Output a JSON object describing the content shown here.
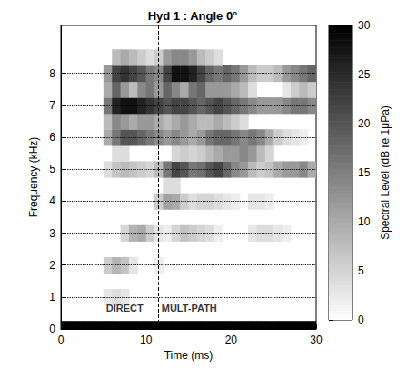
{
  "chart_data": {
    "type": "heatmap",
    "title": "Hyd 1 : Angle 0°",
    "x_label": "Time (ms)",
    "y_label": "Frequency (kHz)",
    "xlim": [
      0,
      30
    ],
    "xticks": [
      0,
      10,
      20,
      30
    ],
    "ylim": [
      0,
      9.5
    ],
    "yticks": [
      0,
      1,
      2,
      3,
      4,
      5,
      6,
      7,
      8
    ],
    "grid": true,
    "x": [
      0.5,
      1.5,
      2.5,
      3.5,
      4.5,
      5.5,
      6.5,
      7.5,
      8.5,
      9.5,
      10.5,
      11.5,
      12.5,
      13.5,
      14.5,
      15.5,
      16.5,
      17.5,
      18.5,
      19.5,
      20.5,
      21.5,
      22.5,
      23.5,
      24.5,
      25.5,
      26.5,
      27.5,
      28.5,
      29.5
    ],
    "y": [
      0,
      0.5,
      1,
      1.5,
      2,
      2.5,
      3,
      3.5,
      4,
      4.5,
      5,
      5.5,
      6,
      6.5,
      7,
      7.5,
      8,
      8.5,
      9,
      9.5
    ],
    "cells": [
      [
        30,
        30,
        30,
        30,
        30,
        30,
        30,
        30,
        30,
        30,
        30,
        30,
        30,
        30,
        30,
        30,
        30,
        30,
        30,
        30,
        30,
        30,
        30,
        30,
        30,
        30,
        30,
        30,
        30,
        30
      ],
      [
        0,
        0,
        0,
        0,
        0,
        0,
        0,
        0,
        0,
        0,
        0,
        0,
        0,
        0,
        0,
        0,
        0,
        0,
        0,
        0,
        0,
        0,
        0,
        0,
        0,
        0,
        0,
        0,
        0,
        0
      ],
      [
        0,
        0,
        0,
        0,
        0,
        3,
        4,
        3,
        0,
        0,
        0,
        0,
        0,
        0,
        0,
        0,
        0,
        0,
        0,
        0,
        0,
        0,
        0,
        0,
        0,
        0,
        0,
        0,
        0,
        0
      ],
      [
        0,
        0,
        0,
        0,
        0,
        0,
        0,
        0,
        0,
        0,
        0,
        0,
        0,
        0,
        0,
        0,
        0,
        0,
        0,
        0,
        0,
        0,
        0,
        0,
        0,
        0,
        0,
        0,
        0,
        0
      ],
      [
        0,
        0,
        0,
        0,
        0,
        6,
        9,
        7,
        3,
        0,
        0,
        2,
        0,
        0,
        0,
        0,
        0,
        0,
        0,
        0,
        0,
        0,
        0,
        0,
        0,
        0,
        0,
        0,
        0,
        0
      ],
      [
        0,
        0,
        0,
        0,
        0,
        0,
        0,
        0,
        0,
        0,
        0,
        0,
        0,
        0,
        0,
        0,
        0,
        0,
        0,
        0,
        0,
        0,
        0,
        0,
        0,
        0,
        0,
        0,
        0,
        0
      ],
      [
        0,
        0,
        0,
        0,
        0,
        0,
        0,
        5,
        9,
        10,
        6,
        3,
        2,
        5,
        7,
        6,
        5,
        4,
        2,
        0,
        0,
        0,
        3,
        4,
        4,
        3,
        2,
        0,
        0,
        0
      ],
      [
        0,
        0,
        0,
        0,
        0,
        0,
        0,
        0,
        0,
        0,
        0,
        0,
        0,
        0,
        0,
        0,
        0,
        0,
        0,
        0,
        0,
        0,
        0,
        0,
        0,
        0,
        0,
        0,
        0,
        0
      ],
      [
        0,
        0,
        0,
        0,
        0,
        0,
        0,
        0,
        0,
        0,
        0,
        6,
        11,
        10,
        6,
        4,
        5,
        5,
        4,
        3,
        2,
        0,
        3,
        3,
        2,
        0,
        0,
        0,
        0,
        0
      ],
      [
        0,
        0,
        0,
        0,
        0,
        0,
        0,
        0,
        0,
        0,
        0,
        0,
        4,
        4,
        0,
        0,
        0,
        0,
        0,
        0,
        0,
        0,
        0,
        0,
        0,
        0,
        0,
        0,
        0,
        0
      ],
      [
        0,
        0,
        0,
        0,
        0,
        4,
        7,
        8,
        7,
        6,
        5,
        8,
        16,
        22,
        20,
        16,
        17,
        20,
        22,
        18,
        14,
        12,
        8,
        6,
        7,
        10,
        12,
        12,
        14,
        10
      ],
      [
        0,
        0,
        0,
        0,
        0,
        0,
        4,
        4,
        0,
        0,
        0,
        0,
        0,
        5,
        6,
        5,
        6,
        8,
        10,
        12,
        12,
        14,
        12,
        8,
        5,
        0,
        0,
        0,
        0,
        0
      ],
      [
        0,
        0,
        0,
        0,
        0,
        10,
        16,
        20,
        20,
        18,
        16,
        14,
        12,
        14,
        12,
        10,
        12,
        16,
        18,
        18,
        16,
        14,
        16,
        14,
        10,
        6,
        4,
        3,
        2,
        0
      ],
      [
        0,
        0,
        0,
        0,
        0,
        8,
        14,
        12,
        10,
        12,
        12,
        10,
        8,
        10,
        12,
        10,
        8,
        8,
        10,
        8,
        6,
        4,
        0,
        0,
        0,
        0,
        0,
        0,
        0,
        0
      ],
      [
        0,
        0,
        0,
        0,
        0,
        16,
        26,
        28,
        28,
        26,
        24,
        22,
        20,
        22,
        22,
        20,
        18,
        20,
        22,
        20,
        18,
        16,
        14,
        12,
        12,
        12,
        14,
        16,
        16,
        14
      ],
      [
        0,
        0,
        0,
        0,
        0,
        10,
        18,
        12,
        8,
        14,
        16,
        12,
        18,
        14,
        10,
        16,
        18,
        12,
        12,
        12,
        10,
        8,
        4,
        0,
        0,
        0,
        3,
        6,
        8,
        6
      ],
      [
        0,
        0,
        0,
        0,
        0,
        12,
        22,
        24,
        22,
        20,
        16,
        14,
        22,
        28,
        28,
        26,
        22,
        18,
        16,
        18,
        16,
        12,
        8,
        6,
        6,
        8,
        12,
        14,
        16,
        18
      ],
      [
        0,
        0,
        0,
        0,
        0,
        0,
        8,
        10,
        8,
        6,
        4,
        6,
        12,
        14,
        14,
        12,
        8,
        6,
        4,
        0,
        0,
        0,
        0,
        0,
        0,
        0,
        0,
        0,
        0,
        0
      ],
      [
        0,
        0,
        0,
        0,
        0,
        0,
        0,
        0,
        0,
        0,
        0,
        0,
        0,
        0,
        0,
        0,
        0,
        0,
        0,
        0,
        0,
        0,
        0,
        0,
        0,
        0,
        0,
        0,
        0,
        0
      ],
      [
        0,
        0,
        0,
        0,
        0,
        0,
        0,
        0,
        0,
        0,
        0,
        0,
        0,
        0,
        0,
        0,
        0,
        0,
        0,
        0,
        0,
        0,
        0,
        0,
        0,
        0,
        0,
        0,
        0,
        0
      ]
    ],
    "annotations": [
      {
        "x": 5,
        "label": "DIRECT"
      },
      {
        "x": 11.5,
        "label": "MULT-PATH"
      }
    ],
    "colorbar": {
      "range": [
        0,
        30
      ],
      "ticks": [
        0,
        5,
        10,
        15,
        20,
        25,
        30
      ],
      "label": "Spectral Level (dB re 1μPa)"
    }
  }
}
